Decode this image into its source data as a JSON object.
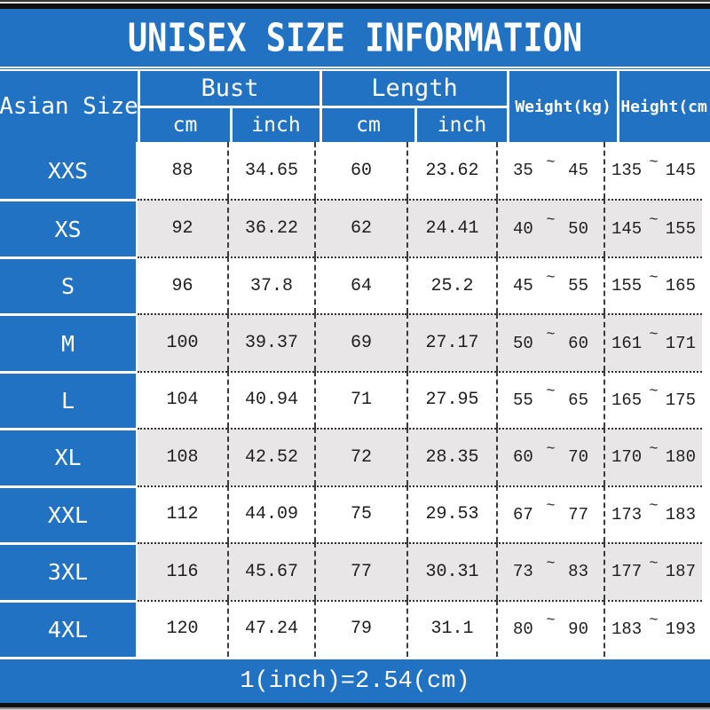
{
  "title": "UNISEX SIZE INFORMATION",
  "colors": {
    "accent_blue": "#2272c3",
    "alt_row_gray": "#e8e6e7",
    "edge_bar_black": "#0f0f0f",
    "header_text": "#ffffff"
  },
  "chart_data": {
    "type": "table",
    "title": "UNISEX SIZE INFORMATION",
    "note": "1(inch)=2.54(cm)",
    "columns": [
      "Asian Size",
      "Bust",
      "Length",
      "Weight(kg)",
      "Height(cm)"
    ],
    "sub_headers": [
      "cm",
      "inch",
      "cm",
      "inch"
    ],
    "range_separator": "~",
    "rows": [
      {
        "size": "XXS",
        "bust_cm": "88",
        "bust_inch": "34.65",
        "length_cm": "60",
        "length_inch": "23.62",
        "weight_min": "35",
        "weight_max": "45",
        "height_min": "135",
        "height_max": "145"
      },
      {
        "size": "XS",
        "bust_cm": "92",
        "bust_inch": "36.22",
        "length_cm": "62",
        "length_inch": "24.41",
        "weight_min": "40",
        "weight_max": "50",
        "height_min": "145",
        "height_max": "155"
      },
      {
        "size": "S",
        "bust_cm": "96",
        "bust_inch": "37.8",
        "length_cm": "64",
        "length_inch": "25.2",
        "weight_min": "45",
        "weight_max": "55",
        "height_min": "155",
        "height_max": "165"
      },
      {
        "size": "M",
        "bust_cm": "100",
        "bust_inch": "39.37",
        "length_cm": "69",
        "length_inch": "27.17",
        "weight_min": "50",
        "weight_max": "60",
        "height_min": "161",
        "height_max": "171"
      },
      {
        "size": "L",
        "bust_cm": "104",
        "bust_inch": "40.94",
        "length_cm": "71",
        "length_inch": "27.95",
        "weight_min": "55",
        "weight_max": "65",
        "height_min": "165",
        "height_max": "175"
      },
      {
        "size": "XL",
        "bust_cm": "108",
        "bust_inch": "42.52",
        "length_cm": "72",
        "length_inch": "28.35",
        "weight_min": "60",
        "weight_max": "70",
        "height_min": "170",
        "height_max": "180"
      },
      {
        "size": "XXL",
        "bust_cm": "112",
        "bust_inch": "44.09",
        "length_cm": "75",
        "length_inch": "29.53",
        "weight_min": "67",
        "weight_max": "77",
        "height_min": "173",
        "height_max": "183"
      },
      {
        "size": "3XL",
        "bust_cm": "116",
        "bust_inch": "45.67",
        "length_cm": "77",
        "length_inch": "30.31",
        "weight_min": "73",
        "weight_max": "83",
        "height_min": "177",
        "height_max": "187"
      },
      {
        "size": "4XL",
        "bust_cm": "120",
        "bust_inch": "47.24",
        "length_cm": "79",
        "length_inch": "31.1",
        "weight_min": "80",
        "weight_max": "90",
        "height_min": "183",
        "height_max": "193"
      }
    ]
  }
}
